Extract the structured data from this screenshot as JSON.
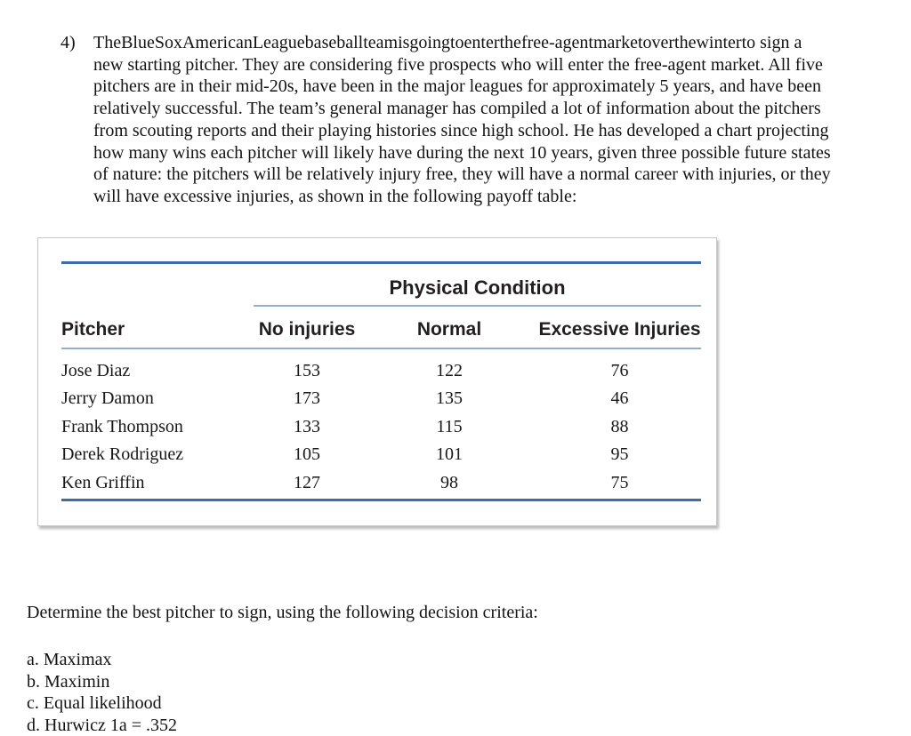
{
  "document": {
    "problem_number": "4)",
    "intro_lines": [
      "TheBlueSoxAmericanLeaguebaseballteamisgoingtoenterthefree-agentmarketoverthewinterto sign a",
      "new starting pitcher. They are considering five prospects who will enter the free-agent market. All five",
      "pitchers are in their mid-20s, have been in the major leagues for approximately 5 years, and have been",
      "relatively successful. The team’s general manager has compiled a lot of information about the pitchers",
      "from scouting reports and their playing histories since high school. He has developed a chart projecting",
      "how many wins each pitcher will likely have during the next 10 years, given three possible future states",
      "of nature: the pitchers will be relatively injury free, they will have a normal career with injuries, or they",
      "will have excessive injuries, as shown in the following payoff table:"
    ],
    "prompt": "Determine the best pitcher to sign, using the following decision criteria:",
    "criteria": [
      "a. Maximax",
      "b. Maximin",
      "c. Equal likelihood",
      "d. Hurwicz 1a = .352"
    ]
  },
  "payoff_table": {
    "group_header": "Physical Condition",
    "columns": [
      "Pitcher",
      "No injuries",
      "Normal",
      "Excessive Injuries"
    ],
    "rows": [
      [
        "Jose Diaz",
        "153",
        "122",
        "76"
      ],
      [
        "Jerry Damon",
        "173",
        "135",
        "46"
      ],
      [
        "Frank Thompson",
        "133",
        "115",
        "88"
      ],
      [
        "Derek Rodriguez",
        "105",
        "101",
        "95"
      ],
      [
        "Ken Griffin",
        "127",
        "98",
        "75"
      ]
    ],
    "colors": {
      "rule_dark": "#3a6ea8",
      "rule_light": "#92afcd"
    }
  }
}
